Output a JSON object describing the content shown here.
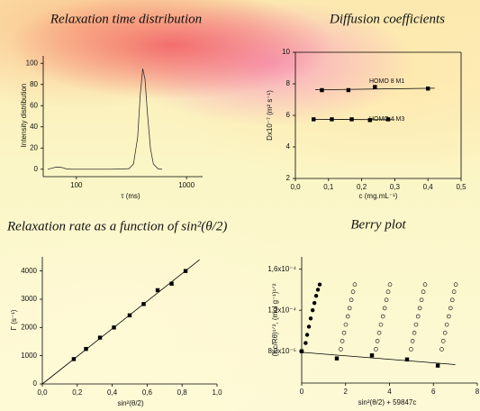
{
  "chart_data": [
    {
      "type": "line",
      "title": "Relaxation time distribution",
      "xlabel": "τ (ms)",
      "ylabel": "Intensity distribution",
      "xscale": "log",
      "xlim": [
        50,
        1400
      ],
      "ylim": [
        -7,
        107
      ],
      "xticks": [
        100,
        1000
      ],
      "yticks": [
        0,
        20,
        40,
        60,
        80,
        100
      ],
      "box": false,
      "color": "#333333",
      "x": [
        55,
        60,
        65,
        70,
        75,
        80,
        90,
        100,
        200,
        300,
        330,
        360,
        380,
        400,
        420,
        440,
        470,
        500,
        550,
        600
      ],
      "values": [
        0,
        1,
        2,
        2,
        1.5,
        0.5,
        0,
        0,
        0,
        0.5,
        5,
        30,
        70,
        95,
        85,
        55,
        20,
        5,
        0.5,
        0
      ]
    },
    {
      "type": "scatter",
      "title": "Diffusion coefficients",
      "xlabel": "c (mg.mL⁻¹)",
      "ylabel": "Dx10⁻⁷ (m² s⁻¹)",
      "xlim": [
        0,
        0.5
      ],
      "ylim": [
        2,
        10
      ],
      "box": true,
      "xticks": [
        {
          "value": 0,
          "label": "0,0"
        },
        {
          "value": 0.1,
          "label": "0,1"
        },
        {
          "value": 0.2,
          "label": "0,2"
        },
        {
          "value": 0.3,
          "label": "0,3"
        },
        {
          "value": 0.4,
          "label": "0,4"
        },
        {
          "value": 0.5,
          "label": "0,5"
        }
      ],
      "yticks": [
        2,
        4,
        6,
        8,
        10
      ],
      "series": [
        {
          "name": "HOMO 8 M1",
          "color": "#000000",
          "marker": "square",
          "x": [
            0.08,
            0.16,
            0.24,
            0.4
          ],
          "values": [
            7.6,
            7.6,
            7.8,
            7.7
          ],
          "fit": {
            "x": [
              0.06,
              0.42
            ],
            "values": [
              7.62,
              7.72
            ]
          }
        },
        {
          "name": "HOMO 4 M3",
          "color": "#000000",
          "marker": "square",
          "x": [
            0.055,
            0.11,
            0.17,
            0.225,
            0.28
          ],
          "values": [
            5.75,
            5.75,
            5.75,
            5.7,
            5.75
          ],
          "fit": {
            "x": [
              0.05,
              0.3
            ],
            "values": [
              5.75,
              5.72
            ]
          }
        }
      ]
    },
    {
      "type": "scatter",
      "title": "Relaxation rate as a function of sin²(θ/2)",
      "xlabel": "sin²(θ/2)",
      "ylabel": "Γ (s⁻¹)",
      "xlim": [
        0,
        1
      ],
      "ylim": [
        0,
        4500
      ],
      "box": false,
      "xticks": [
        {
          "value": 0,
          "label": "0,0"
        },
        {
          "value": 0.2,
          "label": "0,2"
        },
        {
          "value": 0.4,
          "label": "0,4"
        },
        {
          "value": 0.6,
          "label": "0,6"
        },
        {
          "value": 0.8,
          "label": "0,8"
        },
        {
          "value": 1,
          "label": "1,0"
        }
      ],
      "yticks": [
        0,
        1000,
        2000,
        3000,
        4000
      ],
      "series": [
        {
          "color": "#000000",
          "marker": "square",
          "x": [
            0.18,
            0.25,
            0.33,
            0.41,
            0.5,
            0.58,
            0.66,
            0.74,
            0.82
          ],
          "values": [
            880,
            1240,
            1640,
            2000,
            2430,
            2830,
            3320,
            3550,
            4000
          ],
          "fit": {
            "x": [
              0,
              0.9
            ],
            "values": [
              0,
              4400
            ]
          }
        }
      ]
    },
    {
      "type": "scatter",
      "title": "Berry plot",
      "xlabel": "sin²(θ/2) + 59847c",
      "ylabel": "(Kc/Rθ)¹ᐟ², (mol g⁻¹)¹ᐟ²",
      "xlim": [
        0,
        8
      ],
      "ylim": [
        4.9e-05,
        0.000172
      ],
      "box": false,
      "xticks": [
        0,
        2,
        4,
        6,
        8
      ],
      "yticks": [
        {
          "value": 8e-05,
          "label": "8,0x10⁻⁵"
        },
        {
          "value": 0.00012,
          "label": "1,2x10⁻⁴"
        },
        {
          "value": 0.00016,
          "label": "1,6x10⁻⁴"
        }
      ],
      "series": [
        {
          "color": "#000000",
          "marker": "circle",
          "x": [
            0.18,
            0.25,
            0.33,
            0.41,
            0.5,
            0.58,
            0.66,
            0.74,
            0.82
          ],
          "values": [
            8.8e-05,
            9.6e-05,
            0.000104,
            0.000112,
            0.00012,
            0.000127,
            0.000134,
            0.00014,
            0.000145
          ]
        },
        {
          "color": "#000000",
          "marker": "open-circle",
          "x": [
            1.78,
            1.85,
            1.93,
            2.01,
            2.1,
            2.18,
            2.26,
            2.34,
            2.42,
            3.38,
            3.45,
            3.53,
            3.61,
            3.7,
            3.78,
            3.86,
            3.94,
            4.02,
            4.98,
            5.05,
            5.13,
            5.21,
            5.3,
            5.38,
            5.46,
            5.54,
            5.62,
            6.38,
            6.45,
            6.53,
            6.61,
            6.7,
            6.78,
            6.86,
            6.94,
            7.02
          ],
          "values": [
            8.2e-05,
            9e-05,
            9.8e-05,
            0.000106,
            0.000114,
            0.000122,
            0.00013,
            0.000138,
            0.000145,
            8.2e-05,
            9e-05,
            9.8e-05,
            0.000106,
            0.000114,
            0.000122,
            0.00013,
            0.000138,
            0.000145,
            8.2e-05,
            9e-05,
            9.8e-05,
            0.000106,
            0.000114,
            0.000122,
            0.00013,
            0.000138,
            0.000145,
            8.2e-05,
            9e-05,
            9.8e-05,
            0.000106,
            0.000114,
            0.000122,
            0.00013,
            0.000138,
            0.000145
          ]
        },
        {
          "color": "#000000",
          "marker": "square",
          "x": [
            0,
            1.6,
            3.2,
            4.8,
            6.2
          ],
          "values": [
            8e-05,
            7.3e-05,
            7.6e-05,
            7.2e-05,
            6.6e-05
          ],
          "fit": {
            "x": [
              0,
              7
            ],
            "values": [
              7.9e-05,
              6.7e-05
            ]
          }
        }
      ]
    }
  ]
}
